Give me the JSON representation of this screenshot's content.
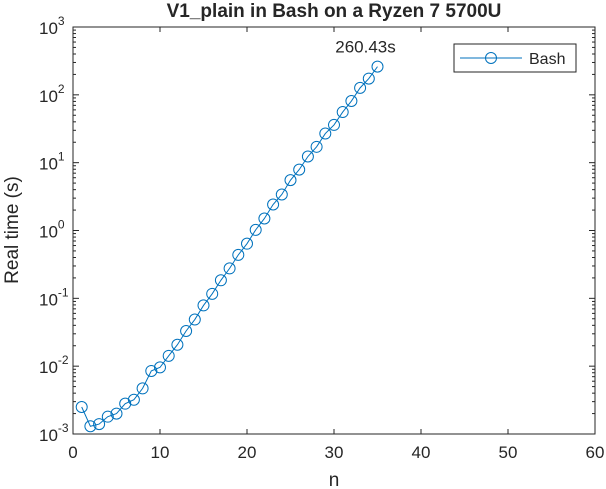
{
  "chart_data": {
    "type": "line",
    "title": "V1_plain in Bash on a Ryzen 7 5700U",
    "xlabel": "n",
    "ylabel": "Real time (s)",
    "xlim": [
      0,
      60
    ],
    "ylim": [
      0.001,
      1000
    ],
    "yscale": "log",
    "grid": false,
    "legend_position": "top-right",
    "x_ticks": [
      "0",
      "10",
      "20",
      "30",
      "40",
      "50",
      "60"
    ],
    "y_ticks": [
      {
        "base": "10",
        "exp": "-3"
      },
      {
        "base": "10",
        "exp": "-2"
      },
      {
        "base": "10",
        "exp": "-1"
      },
      {
        "base": "10",
        "exp": "0"
      },
      {
        "base": "10",
        "exp": "1"
      },
      {
        "base": "10",
        "exp": "2"
      },
      {
        "base": "10",
        "exp": "3"
      }
    ],
    "series": [
      {
        "name": "Bash",
        "color": "#0072BD",
        "marker": "circle",
        "x": [
          1,
          2,
          3,
          4,
          5,
          6,
          7,
          8,
          9,
          10,
          11,
          12,
          13,
          14,
          15,
          16,
          17,
          18,
          19,
          20,
          21,
          22,
          23,
          24,
          25,
          26,
          27,
          28,
          29,
          30,
          31,
          32,
          33,
          34,
          35
        ],
        "y": [
          0.0025,
          0.0013,
          0.0014,
          0.0018,
          0.002,
          0.0028,
          0.0032,
          0.0047,
          0.0085,
          0.0096,
          0.0142,
          0.0207,
          0.033,
          0.0487,
          0.0786,
          0.1165,
          0.1845,
          0.2762,
          0.4371,
          0.6396,
          1.0215,
          1.5031,
          2.417,
          3.3954,
          5.5271,
          7.8954,
          12.318,
          17.127,
          26.858,
          35.994,
          55.727,
          81.061,
          126.69,
          173.57,
          260.43
        ]
      }
    ],
    "annotations": [
      {
        "text": "260.43s",
        "x": 35,
        "y": 260.43
      }
    ]
  }
}
